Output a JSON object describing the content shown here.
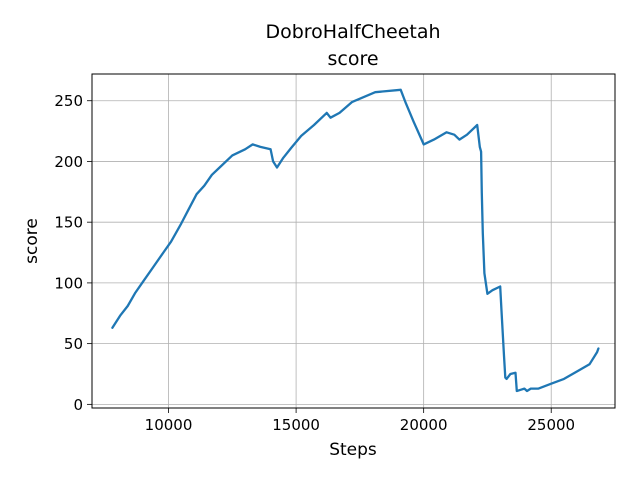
{
  "chart_data": {
    "type": "line",
    "title": "DobroHalfCheetah",
    "subtitle": "score",
    "xlabel": "Steps",
    "ylabel": "score",
    "xlim": [
      7000,
      27500
    ],
    "ylim": [
      -3,
      272
    ],
    "grid": true,
    "xticks": [
      10000,
      15000,
      20000,
      25000
    ],
    "yticks": [
      0,
      50,
      100,
      150,
      200,
      250
    ],
    "xtick_labels": [
      "10000",
      "15000",
      "20000",
      "25000"
    ],
    "ytick_labels": [
      "0",
      "50",
      "100",
      "150",
      "200",
      "250"
    ],
    "series": [
      {
        "color": "#1f77b4",
        "x": [
          7800,
          8100,
          8400,
          8700,
          9000,
          9400,
          9800,
          10100,
          10500,
          10800,
          11100,
          11400,
          11700,
          12000,
          12500,
          13000,
          13300,
          13600,
          14000,
          14100,
          14250,
          14500,
          14800,
          15200,
          15700,
          16200,
          16350,
          16700,
          17200,
          18100,
          19100,
          19300,
          19600,
          20000,
          20400,
          20900,
          21200,
          21400,
          21700,
          22100,
          22200,
          22250,
          22280,
          22320,
          22380,
          22500,
          22700,
          23000,
          23050,
          23150,
          23200,
          23250,
          23400,
          23600,
          23650,
          23800,
          23950,
          24050,
          24200,
          24500,
          25000,
          25500,
          26000,
          26500,
          26800,
          26850
        ],
        "values": [
          63,
          73,
          81,
          92,
          101,
          113,
          125,
          134,
          149,
          161,
          173,
          180,
          189,
          195,
          205,
          210,
          214,
          212,
          210,
          200,
          195,
          203,
          211,
          221,
          230,
          240,
          236,
          240,
          249,
          257,
          259,
          248,
          233,
          214,
          218,
          224,
          222,
          218,
          222,
          230,
          212,
          208,
          174,
          141,
          108,
          91,
          94,
          97,
          77,
          40,
          22,
          21,
          25,
          26,
          11,
          12,
          13,
          11,
          13,
          13,
          17,
          21,
          27,
          33,
          43,
          46
        ]
      }
    ]
  }
}
